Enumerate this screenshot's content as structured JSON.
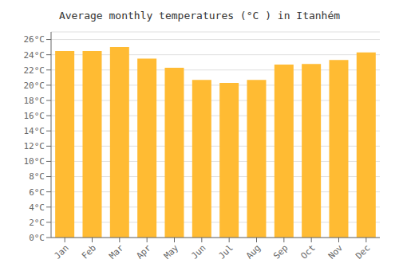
{
  "chart_data": {
    "type": "bar",
    "title": "Average monthly temperatures (°C ) in Itanhém",
    "categories": [
      "Jan",
      "Feb",
      "Mar",
      "Apr",
      "May",
      "Jun",
      "Jul",
      "Aug",
      "Sep",
      "Oct",
      "Nov",
      "Dec"
    ],
    "values": [
      24.5,
      24.5,
      25.0,
      23.5,
      22.3,
      20.7,
      20.3,
      20.7,
      22.7,
      22.8,
      23.3,
      24.3
    ],
    "color": "#FFBB33",
    "ylim": [
      0,
      27
    ],
    "yticks": [
      {
        "value": 0,
        "label": "0°C"
      },
      {
        "value": 2,
        "label": "2°C"
      },
      {
        "value": 4,
        "label": "4°C"
      },
      {
        "value": 6,
        "label": "6°C"
      },
      {
        "value": 8,
        "label": "8°C"
      },
      {
        "value": 10,
        "label": "10°C"
      },
      {
        "value": 12,
        "label": "12°C"
      },
      {
        "value": 14,
        "label": "14°C"
      },
      {
        "value": 16,
        "label": "16°C"
      },
      {
        "value": 18,
        "label": "18°C"
      },
      {
        "value": 20,
        "label": "20°C"
      },
      {
        "value": 22,
        "label": "22°C"
      },
      {
        "value": 24,
        "label": "24°C"
      },
      {
        "value": 26,
        "label": "26°C"
      }
    ],
    "grid": true
  }
}
